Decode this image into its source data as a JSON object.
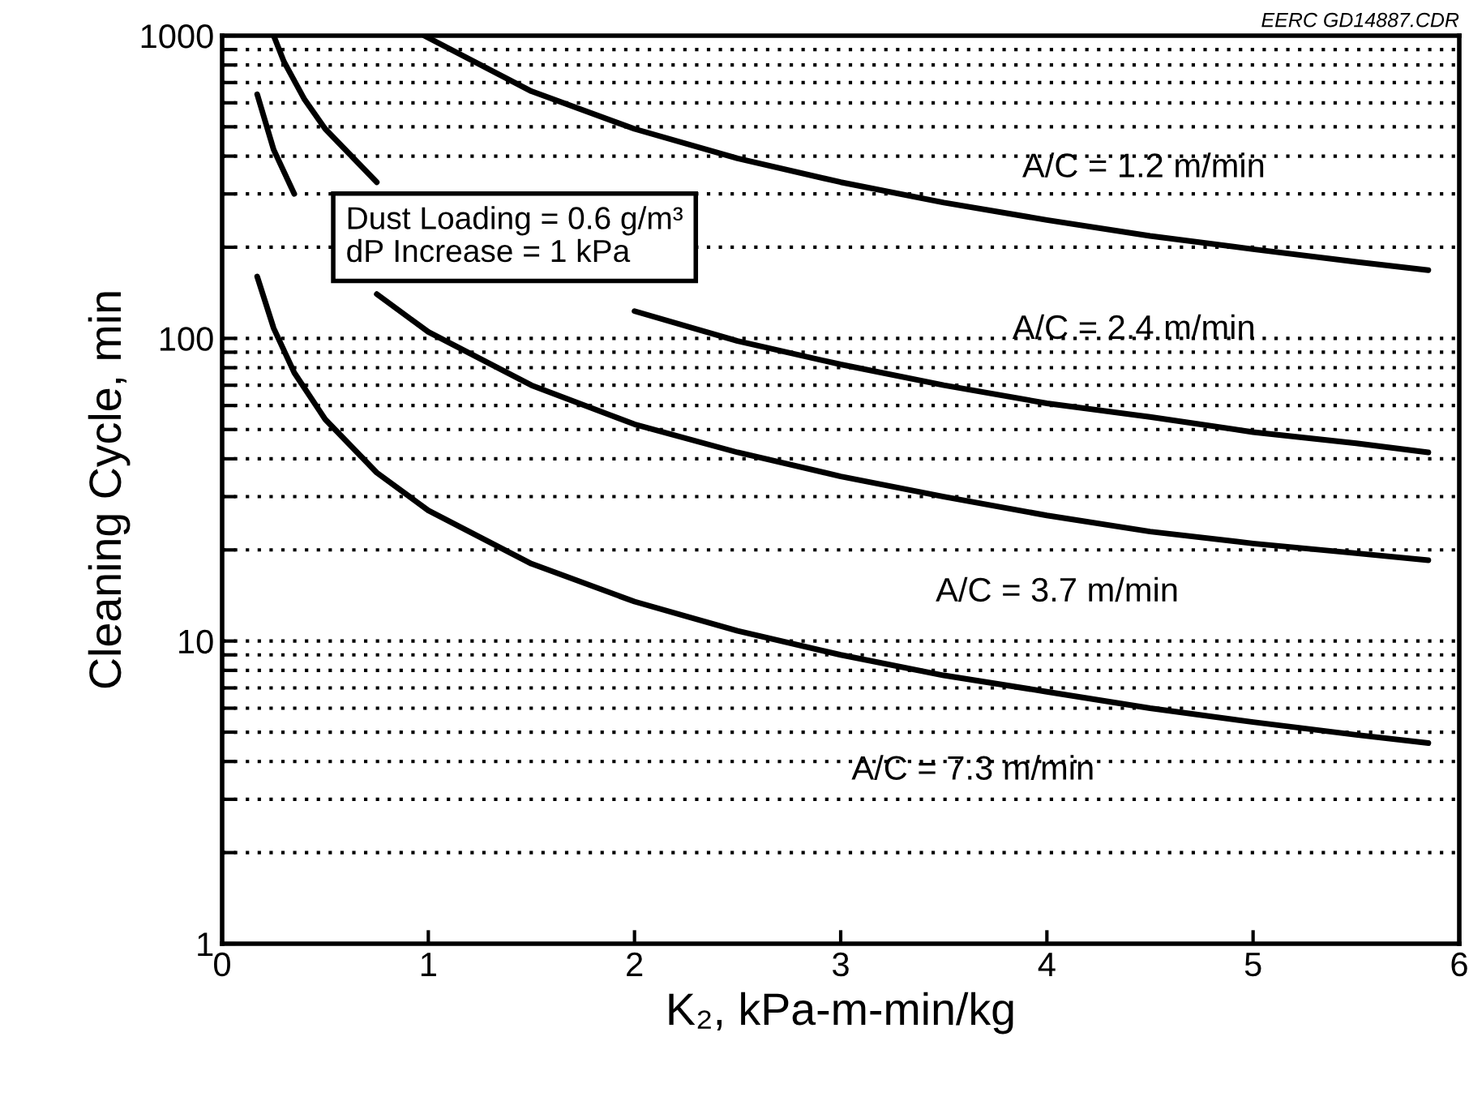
{
  "chart_data": {
    "type": "line",
    "xlabel": "K₂, kPa-m-min/kg",
    "ylabel": "Cleaning Cycle, min",
    "log": "y",
    "xlim": [
      0,
      6
    ],
    "xticks": [
      0,
      1,
      2,
      3,
      4,
      5,
      6
    ],
    "ylim": [
      1,
      1000
    ],
    "yticks": [
      1,
      {
        "value": 2,
        "label": null
      },
      {
        "value": 3,
        "label": null
      },
      {
        "value": 4,
        "label": null
      },
      {
        "value": 5,
        "label": null
      },
      {
        "value": 6,
        "label": null
      },
      {
        "value": 7,
        "label": null
      },
      {
        "value": 8,
        "label": null
      },
      {
        "value": 9,
        "label": null
      },
      10,
      {
        "value": 20,
        "label": null
      },
      {
        "value": 30,
        "label": null
      },
      {
        "value": 40,
        "label": null
      },
      {
        "value": 50,
        "label": null
      },
      {
        "value": 60,
        "label": null
      },
      {
        "value": 70,
        "label": null
      },
      {
        "value": 80,
        "label": null
      },
      {
        "value": 90,
        "label": null
      },
      100,
      {
        "value": 200,
        "label": null
      },
      {
        "value": 300,
        "label": null
      },
      {
        "value": 400,
        "label": null
      },
      {
        "value": 500,
        "label": null
      },
      {
        "value": 600,
        "label": null
      },
      {
        "value": 700,
        "label": null
      },
      {
        "value": 800,
        "label": null
      },
      {
        "value": 900,
        "label": null
      },
      1000
    ],
    "grid": "y",
    "legend": false,
    "marker": "none",
    "line_style": "solid",
    "series": [
      {
        "name": "A/C = 1.2 m/min",
        "color": "#000000",
        "x": [
          0.98,
          1.5,
          2,
          2.5,
          3,
          3.5,
          4,
          4.5,
          5,
          5.5,
          5.85
        ],
        "values": [
          1000,
          655,
          492,
          393,
          328,
          281,
          246,
          218,
          197,
          179,
          168
        ]
      },
      {
        "name": "A/C = 2.4 m/min",
        "color": "#000000",
        "x": [
          0.25,
          0.3,
          0.4,
          0.5,
          0.75,
          1,
          1.5,
          2,
          2.5,
          3,
          3.5,
          4,
          4.5,
          5,
          5.5,
          5.85
        ],
        "values": [
          1000,
          820,
          615,
          492,
          328,
          null,
          null,
          123,
          98,
          82,
          70,
          61,
          55,
          49,
          45,
          42
        ]
      },
      {
        "name": "A/C = 3.7 m/min",
        "color": "#000000",
        "x": [
          0.17,
          0.25,
          0.35,
          0.5,
          0.75,
          1,
          1.5,
          2,
          2.5,
          3,
          3.5,
          4,
          4.5,
          5,
          5.5,
          5.85
        ],
        "values": [
          640,
          420,
          300,
          null,
          140,
          105,
          70,
          52,
          42,
          35,
          30,
          26,
          23,
          21,
          19.5,
          18.5
        ]
      },
      {
        "name": "A/C = 7.3 m/min",
        "color": "#000000",
        "x": [
          0.17,
          0.25,
          0.35,
          0.5,
          0.75,
          1,
          1.5,
          2,
          2.5,
          3,
          3.5,
          4,
          4.5,
          5,
          5.5,
          5.85
        ],
        "values": [
          160,
          108,
          77,
          54,
          36,
          27,
          18,
          13.5,
          10.8,
          9,
          7.7,
          6.8,
          6,
          5.4,
          4.9,
          4.6
        ]
      }
    ],
    "annotations": [
      "Dust Loading = 0.6 g/m³\ndP Increase = 1 kPa",
      "EERC GD14887.CDR"
    ]
  }
}
